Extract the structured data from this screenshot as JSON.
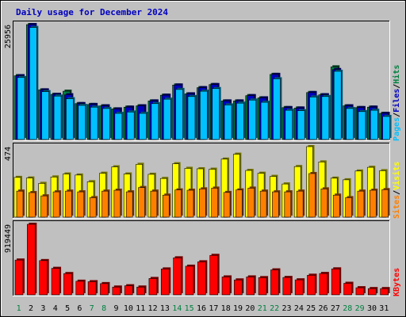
{
  "chart_data": {
    "type": "bar",
    "title": "Daily usage for December 2024",
    "days": [
      "1",
      "2",
      "3",
      "4",
      "5",
      "6",
      "7",
      "8",
      "9",
      "10",
      "11",
      "12",
      "13",
      "14",
      "15",
      "16",
      "17",
      "18",
      "19",
      "20",
      "21",
      "22",
      "23",
      "24",
      "25",
      "26",
      "27",
      "28",
      "29",
      "30",
      "31"
    ],
    "weekend_days": [
      1,
      7,
      8,
      14,
      15,
      21,
      22,
      28,
      29
    ],
    "panels": [
      {
        "id": "hits",
        "ymax_label": "25956",
        "ymax": 25956,
        "legend": [
          {
            "label": "Pages",
            "color": "#00C0FF"
          },
          {
            "label": "Files",
            "color": "#0000C0"
          },
          {
            "label": "Hits",
            "color": "#008040"
          }
        ],
        "series": [
          {
            "name": "Hits",
            "color": "#008040",
            "values": [
              14400,
              25956,
              11200,
              10200,
              10900,
              8100,
              7900,
              7600,
              6900,
              7300,
              7600,
              8700,
              10000,
              12300,
              10300,
              11700,
              12400,
              8700,
              8700,
              9900,
              9400,
              14700,
              7200,
              7100,
              10600,
              10100,
              16400,
              7600,
              7200,
              7300,
              5900
            ]
          },
          {
            "name": "Files",
            "color": "#0000C0",
            "values": [
              14400,
              25956,
              11200,
              10200,
              10100,
              8100,
              7900,
              7600,
              6900,
              7300,
              7600,
              8700,
              10000,
              12300,
              10300,
              11700,
              12400,
              8700,
              8700,
              9900,
              9400,
              14700,
              7200,
              7100,
              10600,
              10100,
              15800,
              7600,
              7200,
              7300,
              5900
            ]
          },
          {
            "name": "Pages",
            "color": "#00C0FF",
            "values": [
              14000,
              25300,
              10800,
              9800,
              9200,
              7700,
              7300,
              7000,
              5900,
              6200,
              5900,
              8100,
              9100,
              11300,
              9700,
              10900,
              11500,
              7800,
              8200,
              8900,
              8400,
              13700,
              6600,
              6500,
              9600,
              9700,
              15400,
              7000,
              6300,
              6600,
              5200
            ]
          }
        ]
      },
      {
        "id": "visits",
        "ymax_label": "474",
        "ymax": 474,
        "legend": [
          {
            "label": "Sites",
            "color": "#FF8000"
          },
          {
            "label": "Visits",
            "color": "#FFFF00"
          }
        ],
        "series": [
          {
            "name": "Visits",
            "color": "#FFFF00",
            "values": [
              267,
              263,
              227,
              270,
              290,
              283,
              238,
              295,
              338,
              290,
              355,
              288,
              260,
              359,
              328,
              325,
              322,
              390,
              423,
              314,
              295,
              274,
              223,
              340,
              474,
              371,
              262,
              251,
              310,
              335,
              312
            ]
          },
          {
            "name": "Sites",
            "color": "#FF8000",
            "values": [
              175,
              165,
              143,
              170,
              175,
              170,
              131,
              175,
              181,
              170,
              199,
              175,
              148,
              183,
              181,
              190,
              195,
              166,
              183,
              195,
              175,
              170,
              170,
              175,
              293,
              190,
              148,
              131,
              175,
              181,
              185
            ]
          }
        ]
      },
      {
        "id": "kbytes",
        "ymax_label": "919449",
        "ymax": 919449,
        "legend": [
          {
            "label": "KBytes",
            "color": "#FF0000"
          }
        ],
        "series": [
          {
            "name": "KBytes",
            "color": "#FF0000",
            "values": [
              453000,
              919449,
              446000,
              345000,
              277000,
              177000,
              171000,
              146000,
              101000,
              118000,
              101000,
              213000,
              337000,
              482000,
              373000,
              430000,
              514000,
              233000,
              194000,
              233000,
              224000,
              325000,
              226000,
              195000,
              255000,
              278000,
              338000,
              150000,
              92000,
              81000,
              81000
            ]
          }
        ]
      }
    ]
  }
}
